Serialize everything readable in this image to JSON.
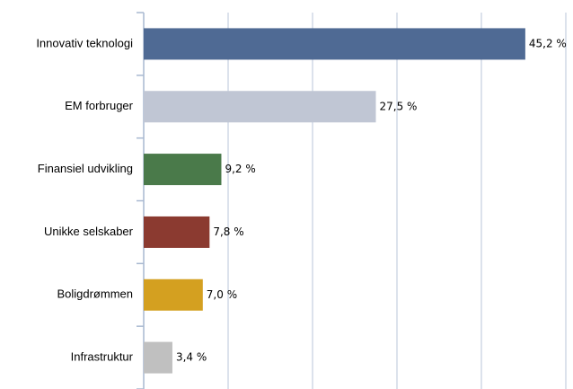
{
  "chart_data": {
    "type": "bar",
    "orientation": "horizontal",
    "categories": [
      "Innovativ teknologi",
      "EM forbruger",
      "Finansiel udvikling",
      "Unikke selskaber",
      "Boligdrømmen",
      "Infrastruktur"
    ],
    "values": [
      45.2,
      27.5,
      9.2,
      7.8,
      7.0,
      3.4
    ],
    "value_labels": [
      "45,2 %",
      "27,5 %",
      "9,2 %",
      "7,8 %",
      "7,0 %",
      "3,4 %"
    ],
    "colors": [
      "#4f6a94",
      "#c0c6d4",
      "#4a7a4a",
      "#8b3a30",
      "#d4a020",
      "#c0c0c0"
    ],
    "xlim": [
      0,
      50
    ],
    "xticks": [
      0,
      10,
      20,
      30,
      40,
      50
    ],
    "grid": true
  }
}
